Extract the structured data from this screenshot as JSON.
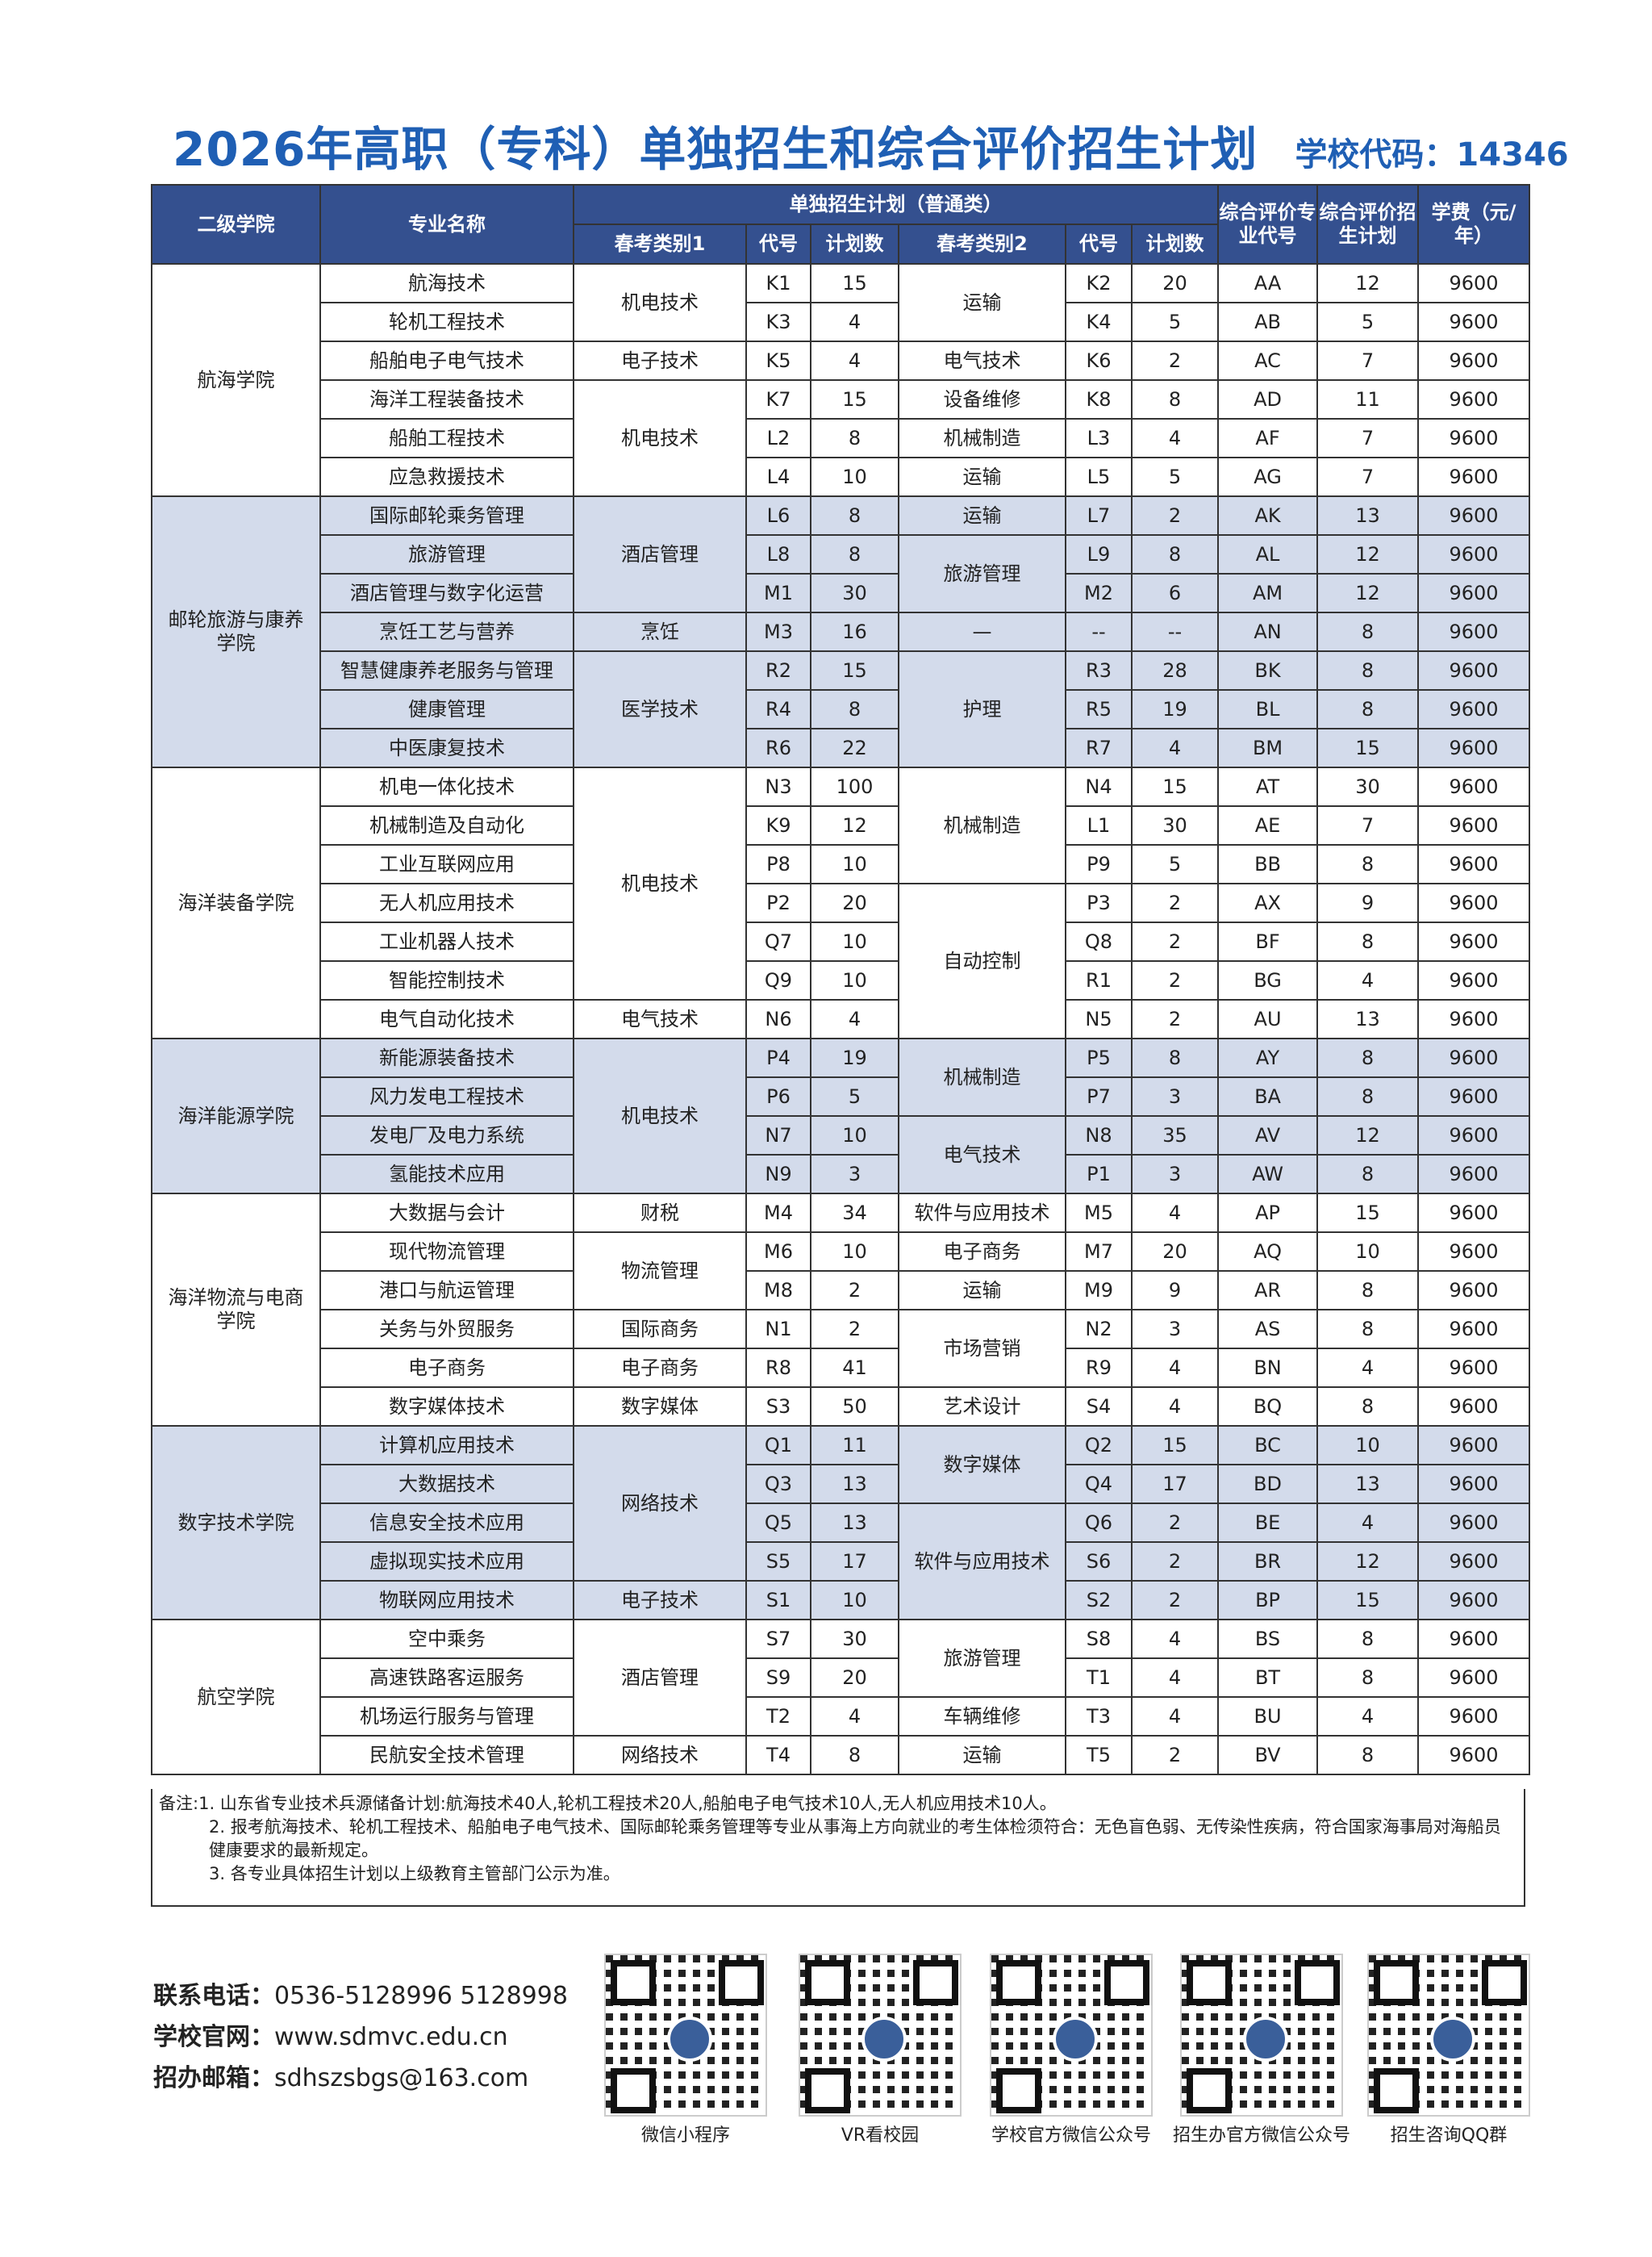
{
  "header": {
    "title": "2026年高职（专科）单独招生和综合评价招生计划",
    "school_code": "学校代码：14346"
  },
  "table": {
    "head_top": [
      "二级学院",
      "专业名称",
      "单独招生计划（普通类）",
      "综合评价专业代号",
      "综合评价招生计划",
      "学费（元/年）"
    ],
    "head_sub": [
      "春考类别1",
      "代号",
      "计划数",
      "春考类别2",
      "代号",
      "计划数"
    ],
    "rows": [
      [
        "航海学院",
        "航海技术",
        "机电技术",
        "K1",
        "15",
        "运输",
        "K2",
        "20",
        "AA",
        "12",
        "9600"
      ],
      [
        "轮机工程技术",
        "K3",
        "4",
        "K4",
        "5",
        "AB",
        "5",
        "9600"
      ],
      [
        "船舶电子电气技术",
        "电子技术",
        "K5",
        "4",
        "电气技术",
        "K6",
        "2",
        "AC",
        "7",
        "9600"
      ],
      [
        "海洋工程装备技术",
        "机电技术",
        "K7",
        "15",
        "设备维修",
        "K8",
        "8",
        "AD",
        "11",
        "9600"
      ],
      [
        "船舶工程技术",
        "L2",
        "8",
        "机械制造",
        "L3",
        "4",
        "AF",
        "7",
        "9600"
      ],
      [
        "应急救援技术",
        "L4",
        "10",
        "运输",
        "L5",
        "5",
        "AG",
        "7",
        "9600"
      ],
      [
        "邮轮旅游与康养学院",
        "国际邮轮乘务管理",
        "酒店管理",
        "L6",
        "8",
        "运输",
        "L7",
        "2",
        "AK",
        "13",
        "9600"
      ],
      [
        "旅游管理",
        "L8",
        "8",
        "旅游管理",
        "L9",
        "8",
        "AL",
        "12",
        "9600"
      ],
      [
        "酒店管理与数字化运营",
        "M1",
        "30",
        "M2",
        "6",
        "AM",
        "12",
        "9600"
      ],
      [
        "烹饪工艺与营养",
        "烹饪",
        "M3",
        "16",
        "—",
        "--",
        "--",
        "AN",
        "8",
        "9600"
      ],
      [
        "智慧健康养老服务与管理",
        "医学技术",
        "R2",
        "15",
        "护理",
        "R3",
        "28",
        "BK",
        "8",
        "9600"
      ],
      [
        "健康管理",
        "R4",
        "8",
        "R5",
        "19",
        "BL",
        "8",
        "9600"
      ],
      [
        "中医康复技术",
        "R6",
        "22",
        "R7",
        "4",
        "BM",
        "15",
        "9600"
      ],
      [
        "海洋装备学院",
        "机电一体化技术",
        "机电技术",
        "N3",
        "100",
        "机械制造",
        "N4",
        "15",
        "AT",
        "30",
        "9600"
      ],
      [
        "机械制造及自动化",
        "K9",
        "12",
        "L1",
        "30",
        "AE",
        "7",
        "9600"
      ],
      [
        "工业互联网应用",
        "P8",
        "10",
        "P9",
        "5",
        "BB",
        "8",
        "9600"
      ],
      [
        "无人机应用技术",
        "P2",
        "20",
        "自动控制",
        "P3",
        "2",
        "AX",
        "9",
        "9600"
      ],
      [
        "工业机器人技术",
        "Q7",
        "10",
        "Q8",
        "2",
        "BF",
        "8",
        "9600"
      ],
      [
        "智能控制技术",
        "Q9",
        "10",
        "R1",
        "2",
        "BG",
        "4",
        "9600"
      ],
      [
        "电气自动化技术",
        "电气技术",
        "N6",
        "4",
        "N5",
        "2",
        "AU",
        "13",
        "9600"
      ],
      [
        "海洋能源学院",
        "新能源装备技术",
        "机电技术",
        "P4",
        "19",
        "机械制造",
        "P5",
        "8",
        "AY",
        "8",
        "9600"
      ],
      [
        "风力发电工程技术",
        "P6",
        "5",
        "P7",
        "3",
        "BA",
        "8",
        "9600"
      ],
      [
        "发电厂及电力系统",
        "N7",
        "10",
        "电气技术",
        "N8",
        "35",
        "AV",
        "12",
        "9600"
      ],
      [
        "氢能技术应用",
        "N9",
        "3",
        "P1",
        "3",
        "AW",
        "8",
        "9600"
      ],
      [
        "海洋物流与电商学院",
        "大数据与会计",
        "财税",
        "M4",
        "34",
        "软件与应用技术",
        "M5",
        "4",
        "AP",
        "15",
        "9600"
      ],
      [
        "现代物流管理",
        "物流管理",
        "M6",
        "10",
        "电子商务",
        "M7",
        "20",
        "AQ",
        "10",
        "9600"
      ],
      [
        "港口与航运管理",
        "M8",
        "2",
        "运输",
        "M9",
        "9",
        "AR",
        "8",
        "9600"
      ],
      [
        "关务与外贸服务",
        "国际商务",
        "N1",
        "2",
        "市场营销",
        "N2",
        "3",
        "AS",
        "8",
        "9600"
      ],
      [
        "电子商务",
        "电子商务",
        "R8",
        "41",
        "R9",
        "4",
        "BN",
        "4",
        "9600"
      ],
      [
        "数字媒体技术",
        "数字媒体",
        "S3",
        "50",
        "艺术设计",
        "S4",
        "4",
        "BQ",
        "8",
        "9600"
      ],
      [
        "数字技术学院",
        "计算机应用技术",
        "网络技术",
        "Q1",
        "11",
        "数字媒体",
        "Q2",
        "15",
        "BC",
        "10",
        "9600"
      ],
      [
        "大数据技术",
        "Q3",
        "13",
        "Q4",
        "17",
        "BD",
        "13",
        "9600"
      ],
      [
        "信息安全技术应用",
        "Q5",
        "13",
        "软件与应用技术",
        "Q6",
        "2",
        "BE",
        "4",
        "9600"
      ],
      [
        "虚拟现实技术应用",
        "S5",
        "17",
        "S6",
        "2",
        "BR",
        "12",
        "9600"
      ],
      [
        "物联网应用技术",
        "电子技术",
        "S1",
        "10",
        "S2",
        "2",
        "BP",
        "15",
        "9600"
      ],
      [
        "航空学院",
        "空中乘务",
        "酒店管理",
        "S7",
        "30",
        "旅游管理",
        "S8",
        "4",
        "BS",
        "8",
        "9600"
      ],
      [
        "高速铁路客运服务",
        "S9",
        "20",
        "T1",
        "4",
        "BT",
        "8",
        "9600"
      ],
      [
        "机场运行服务与管理",
        "T2",
        "4",
        "车辆维修",
        "T3",
        "4",
        "BU",
        "4",
        "9600"
      ],
      [
        "民航安全技术管理",
        "网络技术",
        "T4",
        "8",
        "运输",
        "T5",
        "2",
        "BV",
        "8",
        "9600"
      ]
    ]
  },
  "notes": {
    "label": "备注:",
    "items": [
      "1. 山东省专业技术兵源储备计划:航海技术40人,轮机工程技术20人,船舶电子电气技术10人,无人机应用技术10人。",
      "2. 报考航海技术、轮机工程技术、船舶电子电气技术、国际邮轮乘务管理等专业从事海上方向就业的考生体检须符合：无色盲色弱、无传染性疾病，符合国家海事局对海船员健康要求的最新规定。",
      "3. 各专业具体招生计划以上级教育主管部门公示为准。"
    ]
  },
  "footer": {
    "contacts": [
      {
        "label": "联系电话：",
        "value": "0536-5128996  5128998"
      },
      {
        "label": "学校官网：",
        "value": "www.sdmvc.edu.cn"
      },
      {
        "label": "招办邮箱：",
        "value": "sdhszsbgs@163.com"
      }
    ],
    "qr_labels": [
      "微信小程序",
      "VR看校园",
      "学校官方微信公众号",
      "招生办官方微信公众号",
      "招生咨询QQ群"
    ]
  }
}
